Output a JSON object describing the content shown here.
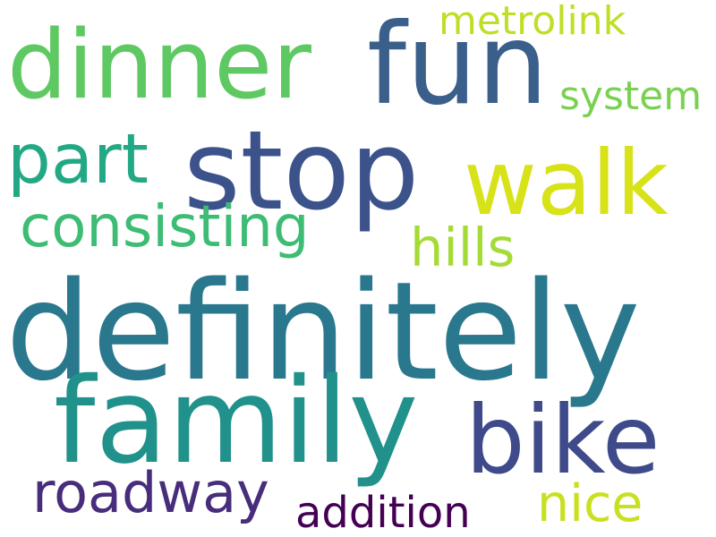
{
  "words": [
    {
      "text": "definitely",
      "color": "#2a788e"
    },
    {
      "text": "family",
      "color": "#21918c"
    },
    {
      "text": "stop",
      "color": "#3b528b"
    },
    {
      "text": "fun",
      "color": "#3b5f8b"
    },
    {
      "text": "dinner",
      "color": "#5ec962"
    },
    {
      "text": "walk",
      "color": "#d8e219"
    },
    {
      "text": "bike",
      "color": "#3e4a89"
    },
    {
      "text": "part",
      "color": "#22a884"
    },
    {
      "text": "consisting",
      "color": "#3dbc74"
    },
    {
      "text": "roadway",
      "color": "#472d7b"
    },
    {
      "text": "hills",
      "color": "#a5db36"
    },
    {
      "text": "nice",
      "color": "#c8e020"
    },
    {
      "text": "addition",
      "color": "#440154"
    },
    {
      "text": "metrolink",
      "color": "#bddf26"
    },
    {
      "text": "system",
      "color": "#7ad151"
    }
  ]
}
